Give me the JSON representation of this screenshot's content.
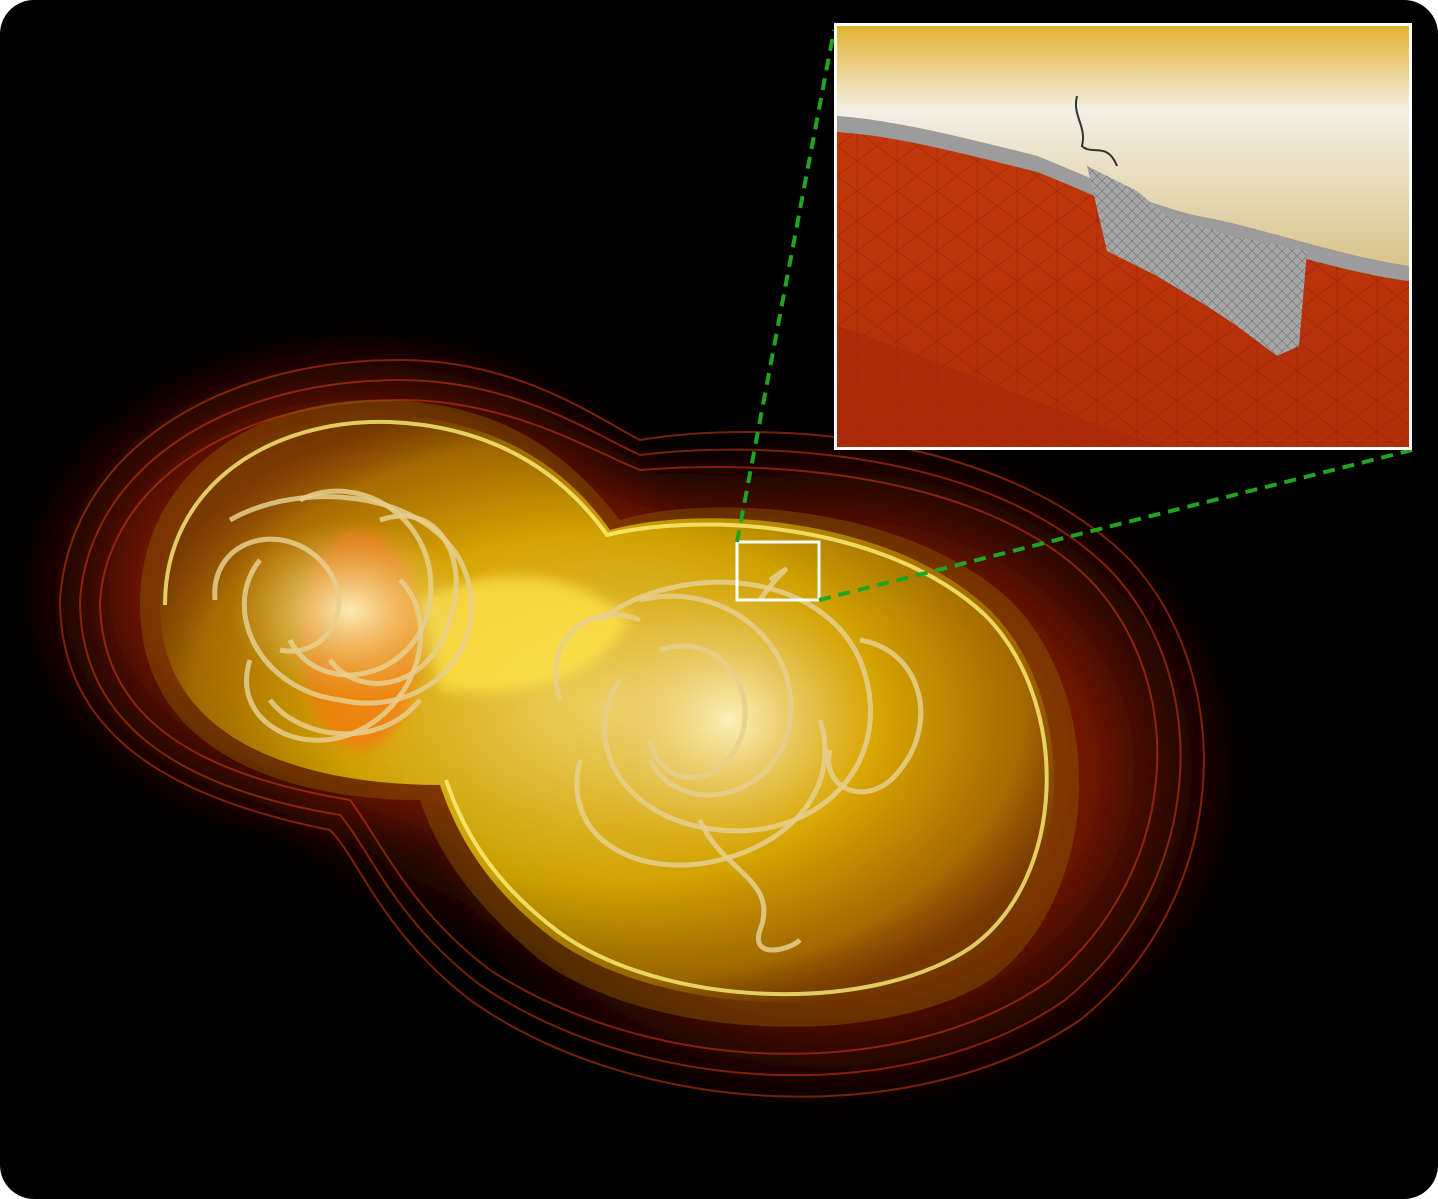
{
  "image": {
    "description_icon": "binary-neutron-star-merger-visualization",
    "colors": {
      "background": "#000000",
      "outer_glow": "#c8260a",
      "inner_shell": "#e8c400",
      "field_lines": "#e0c98a",
      "zoom_box": "#ffffff",
      "connector": "#1fa51f",
      "inset_upper": "#f1efe6",
      "inset_lower": "#c2360c",
      "inset_mesh": "#8d8d8d"
    }
  }
}
